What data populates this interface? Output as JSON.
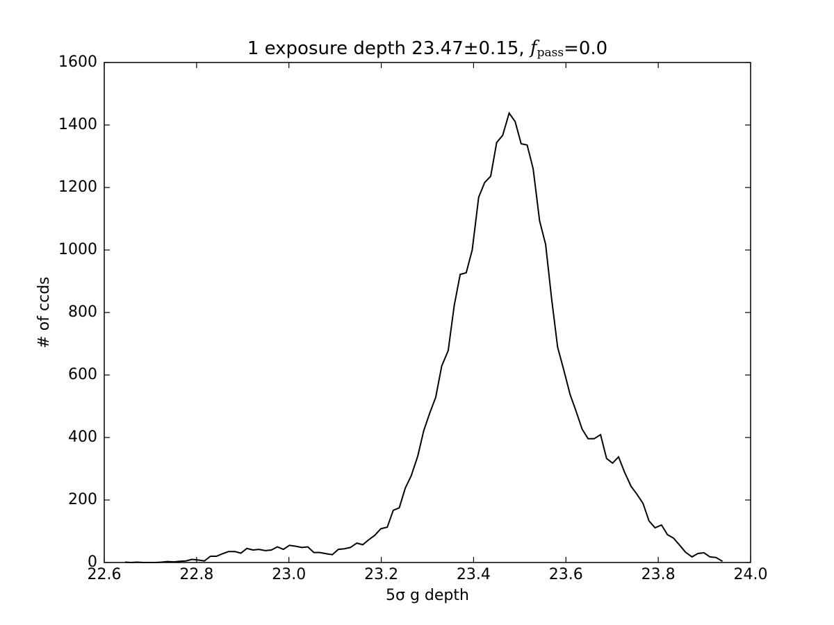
{
  "chart_data": {
    "type": "line",
    "title_parts": [
      "1 exposure depth 23.47±0.15, ",
      "f",
      "pass",
      "=0.0"
    ],
    "xlabel": "5σ g depth",
    "ylabel": "# of ccds",
    "x": [
      22.645,
      22.658,
      22.671,
      22.685,
      22.698,
      22.711,
      22.724,
      22.737,
      22.751,
      22.764,
      22.777,
      22.79,
      22.803,
      22.817,
      22.83,
      22.843,
      22.856,
      22.869,
      22.883,
      22.896,
      22.909,
      22.922,
      22.935,
      22.949,
      22.962,
      22.975,
      22.988,
      23.001,
      23.015,
      23.028,
      23.041,
      23.054,
      23.067,
      23.081,
      23.094,
      23.107,
      23.12,
      23.133,
      23.147,
      23.16,
      23.173,
      23.186,
      23.199,
      23.213,
      23.226,
      23.239,
      23.252,
      23.265,
      23.279,
      23.292,
      23.305,
      23.318,
      23.331,
      23.345,
      23.358,
      23.371,
      23.384,
      23.397,
      23.411,
      23.424,
      23.437,
      23.45,
      23.463,
      23.477,
      23.49,
      23.503,
      23.516,
      23.529,
      23.543,
      23.556,
      23.569,
      23.582,
      23.595,
      23.609,
      23.622,
      23.635,
      23.648,
      23.661,
      23.675,
      23.688,
      23.701,
      23.714,
      23.727,
      23.741,
      23.754,
      23.767,
      23.78,
      23.793,
      23.807,
      23.82,
      23.833,
      23.846,
      23.859,
      23.873,
      23.886,
      23.899,
      23.912,
      23.925,
      23.939
    ],
    "series": [
      {
        "color": "#000000",
        "values": [
          1,
          0,
          1,
          0,
          0,
          0,
          1,
          3,
          2,
          4,
          5,
          10,
          8,
          5,
          20,
          20,
          28,
          35,
          35,
          30,
          45,
          40,
          42,
          38,
          40,
          50,
          42,
          55,
          52,
          48,
          50,
          32,
          32,
          28,
          25,
          42,
          44,
          48,
          62,
          57,
          73,
          87,
          108,
          113,
          167,
          175,
          238,
          278,
          340,
          422,
          478,
          529,
          629,
          678,
          822,
          922,
          927,
          1000,
          1169,
          1216,
          1236,
          1344,
          1367,
          1438,
          1411,
          1340,
          1336,
          1260,
          1093,
          1018,
          844,
          689,
          618,
          538,
          484,
          427,
          396,
          396,
          409,
          333,
          318,
          338,
          289,
          244,
          218,
          189,
          133,
          111,
          120,
          89,
          78,
          56,
          33,
          18,
          29,
          31,
          18,
          16,
          4
        ]
      }
    ],
    "xlim": [
      22.6,
      24.0
    ],
    "xticks": [
      22.6,
      22.8,
      {
        "value": 23,
        "label": "23.0"
      },
      23.2,
      23.4,
      23.6,
      23.8,
      {
        "value": 24,
        "label": "24.0"
      }
    ],
    "ylim": [
      0,
      1600
    ],
    "yticks": [
      0,
      200,
      400,
      600,
      800,
      1000,
      1200,
      1400,
      1600
    ],
    "grid": false
  }
}
